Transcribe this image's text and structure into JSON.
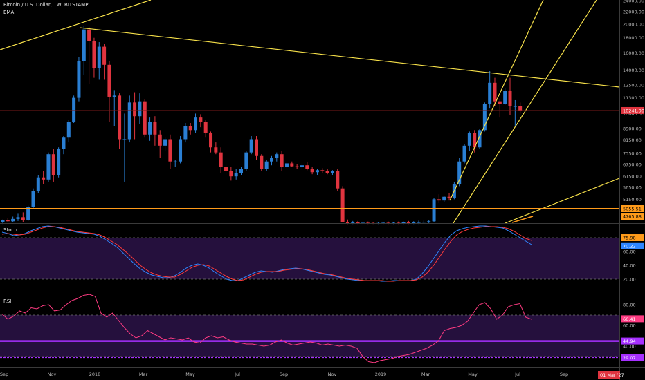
{
  "header": {
    "symbol_line": "Bitcoin / U.S. Dollar, 1W, BITSTAMP",
    "indicator": "EMA"
  },
  "panes": {
    "stoch_label": "Stoch",
    "rsi_label": "RSI"
  },
  "colors": {
    "background": "#000000",
    "up": "#2a7fd4",
    "down": "#e0343f",
    "trendline": "#f7e14a",
    "support": "#ff9b1a",
    "stoch_k": "#2f86ff",
    "stoch_d": "#ff3b3b",
    "rsi_line": "#ff3b82",
    "band_fill": "#25103d",
    "midline": "#a630ff"
  },
  "chart_data": [
    {
      "type": "candlestick",
      "title": "Bitcoin / U.S. Dollar, 1W, BITSTAMP",
      "scale": "log",
      "ylim": [
        4300,
        24000
      ],
      "price_ticks": [
        "24000.00",
        "22000.00",
        "20000.00",
        "18000.00",
        "16000.00",
        "14000.00",
        "12500.00",
        "11300.00",
        "10000.00",
        "8900.00",
        "8150.00",
        "7350.00",
        "6750.00",
        "6150.00",
        "5650.00",
        "5150.00"
      ],
      "x_labels": [
        "Sep",
        "Nov",
        "2018",
        "Mar",
        "May",
        "Jul",
        "Sep",
        "Nov",
        "2019",
        "Mar",
        "May",
        "Jul",
        "Sep"
      ],
      "current_price": "10241.90",
      "support_labels": [
        "5055.51",
        "4765.88"
      ],
      "date_label": "01 Mar '27",
      "candles": [
        {
          "o": 4300,
          "h": 4400,
          "l": 4250,
          "c": 4380
        },
        {
          "o": 4380,
          "h": 4450,
          "l": 4300,
          "c": 4340
        },
        {
          "o": 4340,
          "h": 4500,
          "l": 4300,
          "c": 4420
        },
        {
          "o": 4420,
          "h": 4600,
          "l": 4350,
          "c": 4480
        },
        {
          "o": 4480,
          "h": 4650,
          "l": 4300,
          "c": 4380
        },
        {
          "o": 4380,
          "h": 4900,
          "l": 4350,
          "c": 4850
        },
        {
          "o": 4850,
          "h": 5600,
          "l": 4800,
          "c": 5500
        },
        {
          "o": 5500,
          "h": 6200,
          "l": 5400,
          "c": 6100
        },
        {
          "o": 6100,
          "h": 6400,
          "l": 5800,
          "c": 6000
        },
        {
          "o": 6000,
          "h": 7400,
          "l": 5900,
          "c": 7300
        },
        {
          "o": 7300,
          "h": 7600,
          "l": 5900,
          "c": 6200
        },
        {
          "o": 6200,
          "h": 7700,
          "l": 6100,
          "c": 7600
        },
        {
          "o": 7600,
          "h": 8400,
          "l": 7300,
          "c": 8300
        },
        {
          "o": 8300,
          "h": 9500,
          "l": 8000,
          "c": 9400
        },
        {
          "o": 9400,
          "h": 11500,
          "l": 9300,
          "c": 11300
        },
        {
          "o": 11300,
          "h": 15500,
          "l": 11000,
          "c": 15000
        },
        {
          "o": 15000,
          "h": 19700,
          "l": 13500,
          "c": 19200
        },
        {
          "o": 19200,
          "h": 19600,
          "l": 12600,
          "c": 17500
        },
        {
          "o": 17500,
          "h": 18000,
          "l": 13200,
          "c": 14200
        },
        {
          "o": 14200,
          "h": 17400,
          "l": 13000,
          "c": 16800
        },
        {
          "o": 16800,
          "h": 17200,
          "l": 13000,
          "c": 14600
        },
        {
          "o": 14600,
          "h": 15000,
          "l": 9400,
          "c": 11400
        },
        {
          "o": 11400,
          "h": 12000,
          "l": 9100,
          "c": 11500
        },
        {
          "o": 11500,
          "h": 11700,
          "l": 7600,
          "c": 8200
        },
        {
          "o": 8200,
          "h": 10000,
          "l": 5900,
          "c": 8200
        },
        {
          "o": 8200,
          "h": 11500,
          "l": 8000,
          "c": 10900
        },
        {
          "o": 10900,
          "h": 11800,
          "l": 8200,
          "c": 9800
        },
        {
          "o": 9800,
          "h": 11700,
          "l": 9200,
          "c": 11000
        },
        {
          "o": 11000,
          "h": 11200,
          "l": 8300,
          "c": 8500
        },
        {
          "o": 8500,
          "h": 9700,
          "l": 8100,
          "c": 9400
        },
        {
          "o": 9400,
          "h": 9800,
          "l": 7800,
          "c": 8500
        },
        {
          "o": 8500,
          "h": 8800,
          "l": 7100,
          "c": 7800
        },
        {
          "o": 7800,
          "h": 8300,
          "l": 7500,
          "c": 8200
        },
        {
          "o": 8200,
          "h": 8500,
          "l": 6500,
          "c": 6900
        },
        {
          "o": 6900,
          "h": 7000,
          "l": 6600,
          "c": 6900
        },
        {
          "o": 6900,
          "h": 8400,
          "l": 6800,
          "c": 8200
        },
        {
          "o": 8200,
          "h": 9300,
          "l": 8000,
          "c": 9100
        },
        {
          "o": 9100,
          "h": 9300,
          "l": 8500,
          "c": 8800
        },
        {
          "o": 8800,
          "h": 10000,
          "l": 8600,
          "c": 9700
        },
        {
          "o": 9700,
          "h": 9950,
          "l": 9000,
          "c": 9400
        },
        {
          "o": 9400,
          "h": 9500,
          "l": 8300,
          "c": 8600
        },
        {
          "o": 8600,
          "h": 8700,
          "l": 7400,
          "c": 7700
        },
        {
          "o": 7700,
          "h": 8000,
          "l": 7300,
          "c": 7400
        },
        {
          "o": 7400,
          "h": 7700,
          "l": 6300,
          "c": 6600
        },
        {
          "o": 6600,
          "h": 6800,
          "l": 6200,
          "c": 6400
        },
        {
          "o": 6400,
          "h": 6600,
          "l": 5950,
          "c": 6150
        },
        {
          "o": 6150,
          "h": 6500,
          "l": 6000,
          "c": 6300
        },
        {
          "o": 6300,
          "h": 6600,
          "l": 6200,
          "c": 6500
        },
        {
          "o": 6500,
          "h": 7500,
          "l": 6400,
          "c": 7400
        },
        {
          "o": 7400,
          "h": 8400,
          "l": 7300,
          "c": 8200
        },
        {
          "o": 8200,
          "h": 8400,
          "l": 7000,
          "c": 7200
        },
        {
          "o": 7200,
          "h": 7300,
          "l": 6400,
          "c": 6500
        },
        {
          "o": 6500,
          "h": 7000,
          "l": 6400,
          "c": 6900
        },
        {
          "o": 6900,
          "h": 7200,
          "l": 6700,
          "c": 7100
        },
        {
          "o": 7100,
          "h": 7400,
          "l": 6900,
          "c": 7300
        },
        {
          "o": 7300,
          "h": 7500,
          "l": 6400,
          "c": 6600
        },
        {
          "o": 6600,
          "h": 6900,
          "l": 6500,
          "c": 6800
        },
        {
          "o": 6800,
          "h": 6900,
          "l": 6600,
          "c": 6650
        },
        {
          "o": 6650,
          "h": 6750,
          "l": 6500,
          "c": 6600
        },
        {
          "o": 6600,
          "h": 6800,
          "l": 6500,
          "c": 6700
        },
        {
          "o": 6700,
          "h": 6850,
          "l": 6450,
          "c": 6500
        },
        {
          "o": 6500,
          "h": 6600,
          "l": 6250,
          "c": 6350
        },
        {
          "o": 6350,
          "h": 6500,
          "l": 6200,
          "c": 6450
        },
        {
          "o": 6450,
          "h": 6550,
          "l": 6300,
          "c": 6400
        },
        {
          "o": 6400,
          "h": 6500,
          "l": 6250,
          "c": 6300
        },
        {
          "o": 6300,
          "h": 6450,
          "l": 6200,
          "c": 6400
        },
        {
          "o": 6400,
          "h": 6500,
          "l": 5500,
          "c": 5600
        },
        {
          "o": 5600,
          "h": 5700,
          "l": 4300,
          "c": 4300
        },
        {
          "o": 4300,
          "h": 4400,
          "l": 4250,
          "c": 4280
        },
        {
          "o": 4280,
          "h": 4350,
          "l": 4250,
          "c": 4300
        },
        {
          "o": 4300,
          "h": 4350,
          "l": 4250,
          "c": 4270
        },
        {
          "o": 4270,
          "h": 4320,
          "l": 4250,
          "c": 4290
        },
        {
          "o": 4290,
          "h": 4330,
          "l": 4250,
          "c": 4280
        },
        {
          "o": 4280,
          "h": 4320,
          "l": 4250,
          "c": 4270
        },
        {
          "o": 4270,
          "h": 4310,
          "l": 4250,
          "c": 4280
        },
        {
          "o": 4280,
          "h": 4320,
          "l": 4250,
          "c": 4290
        },
        {
          "o": 4290,
          "h": 4330,
          "l": 4250,
          "c": 4280
        },
        {
          "o": 4280,
          "h": 4320,
          "l": 4250,
          "c": 4290
        },
        {
          "o": 4290,
          "h": 4330,
          "l": 4250,
          "c": 4280
        },
        {
          "o": 4280,
          "h": 4330,
          "l": 4250,
          "c": 4300
        },
        {
          "o": 4300,
          "h": 4350,
          "l": 4250,
          "c": 4290
        },
        {
          "o": 4290,
          "h": 4340,
          "l": 4250,
          "c": 4300
        },
        {
          "o": 4300,
          "h": 4360,
          "l": 4250,
          "c": 4310
        },
        {
          "o": 4310,
          "h": 4360,
          "l": 4260,
          "c": 4320
        },
        {
          "o": 4320,
          "h": 4380,
          "l": 4270,
          "c": 4340
        },
        {
          "o": 4340,
          "h": 5200,
          "l": 4300,
          "c": 5150
        },
        {
          "o": 5150,
          "h": 5350,
          "l": 5000,
          "c": 5100
        },
        {
          "o": 5100,
          "h": 5300,
          "l": 5050,
          "c": 5250
        },
        {
          "o": 5250,
          "h": 5400,
          "l": 5100,
          "c": 5200
        },
        {
          "o": 5200,
          "h": 5900,
          "l": 5150,
          "c": 5800
        },
        {
          "o": 5800,
          "h": 7100,
          "l": 5700,
          "c": 6900
        },
        {
          "o": 6900,
          "h": 7900,
          "l": 6800,
          "c": 7800
        },
        {
          "o": 7800,
          "h": 8700,
          "l": 7500,
          "c": 8600
        },
        {
          "o": 8600,
          "h": 8800,
          "l": 7400,
          "c": 7700
        },
        {
          "o": 7700,
          "h": 8900,
          "l": 7600,
          "c": 8800
        },
        {
          "o": 8800,
          "h": 10900,
          "l": 8700,
          "c": 10800
        },
        {
          "o": 10800,
          "h": 13900,
          "l": 10400,
          "c": 12700
        },
        {
          "o": 12700,
          "h": 13200,
          "l": 10600,
          "c": 11000
        },
        {
          "o": 11000,
          "h": 11200,
          "l": 9700,
          "c": 10800
        },
        {
          "o": 10800,
          "h": 12200,
          "l": 10700,
          "c": 11900
        },
        {
          "o": 11900,
          "h": 13200,
          "l": 9900,
          "c": 10600
        },
        {
          "o": 10600,
          "h": 11100,
          "l": 9100,
          "c": 10600
        },
        {
          "o": 10600,
          "h": 10900,
          "l": 10000,
          "c": 10240
        }
      ]
    },
    {
      "type": "line",
      "title": "Stoch",
      "ylim": [
        0,
        100
      ],
      "ticks": [
        "80.00",
        "60.00",
        "40.00",
        "20.00"
      ],
      "bands": [
        80,
        20
      ],
      "last_values": [
        "75.98",
        "70.22"
      ],
      "series": [
        {
          "name": "",
          "color": "#2f86ff",
          "values": [
            88,
            86,
            83,
            84,
            86,
            90,
            93,
            96,
            97,
            96,
            94,
            92,
            90,
            88,
            87,
            86,
            85,
            82,
            77,
            72,
            66,
            58,
            50,
            42,
            35,
            30,
            26,
            24,
            22,
            22,
            25,
            30,
            36,
            40,
            42,
            40,
            36,
            30,
            25,
            20,
            18,
            18,
            22,
            26,
            30,
            32,
            31,
            30,
            32,
            34,
            35,
            36,
            35,
            33,
            31,
            29,
            27,
            26,
            24,
            22,
            20,
            19,
            18,
            18,
            18,
            18,
            17,
            17,
            18,
            18,
            18,
            18,
            20,
            28,
            38,
            50,
            62,
            74,
            84,
            90,
            93,
            95,
            96,
            97,
            97,
            96,
            95,
            94,
            90,
            85,
            80,
            75,
            70
          ]
        },
        {
          "name": "",
          "color": "#ff3b3b",
          "values": [
            85,
            86,
            85,
            84,
            85,
            88,
            91,
            94,
            96,
            96,
            95,
            93,
            91,
            89,
            88,
            87,
            86,
            84,
            80,
            75,
            70,
            63,
            56,
            48,
            40,
            34,
            29,
            26,
            24,
            23,
            23,
            27,
            32,
            37,
            40,
            41,
            39,
            34,
            29,
            24,
            20,
            18,
            19,
            23,
            27,
            30,
            31,
            31,
            31,
            33,
            34,
            35,
            35,
            34,
            32,
            30,
            28,
            27,
            25,
            23,
            21,
            20,
            19,
            18,
            18,
            18,
            18,
            17,
            17,
            18,
            18,
            18,
            19,
            23,
            30,
            40,
            52,
            64,
            75,
            84,
            89,
            92,
            94,
            95,
            96,
            96,
            96,
            95,
            93,
            89,
            84,
            79,
            76
          ]
        }
      ]
    },
    {
      "type": "line",
      "title": "RSI",
      "ylim": [
        20,
        90
      ],
      "ticks": [
        "80.00",
        "60.00",
        "40.00"
      ],
      "bands": [
        70,
        30
      ],
      "midline": 44.94,
      "last_values": [
        "66.41",
        "44.94",
        "29.07"
      ],
      "series": [
        {
          "name": "",
          "color": "#ff3b82",
          "values": [
            71,
            66,
            69,
            74,
            72,
            77,
            76,
            79,
            80,
            74,
            75,
            80,
            84,
            86,
            89,
            90,
            88,
            72,
            68,
            72,
            65,
            58,
            52,
            48,
            50,
            55,
            52,
            49,
            46,
            48,
            47,
            46,
            48,
            44,
            43,
            48,
            50,
            48,
            49,
            46,
            44,
            43,
            42,
            42,
            41,
            40,
            41,
            44,
            46,
            43,
            41,
            42,
            43,
            44,
            43,
            41,
            42,
            41,
            40,
            41,
            40,
            38,
            30,
            25,
            24,
            26,
            27,
            28,
            30,
            31,
            32,
            34,
            36,
            38,
            41,
            45,
            55,
            57,
            58,
            60,
            64,
            72,
            80,
            82,
            76,
            66,
            70,
            78,
            80,
            81,
            68,
            66
          ]
        }
      ]
    }
  ]
}
